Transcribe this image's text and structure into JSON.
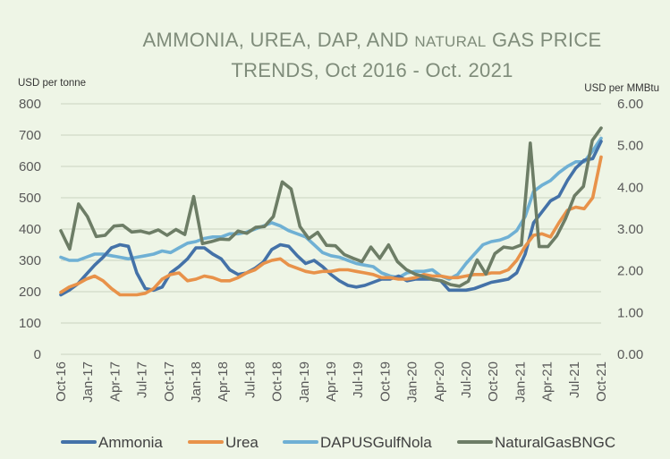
{
  "chart_data": {
    "type": "line",
    "title_part1": "AMMONIA, UREA, DAP, AND ",
    "title_part2": "NATURAL",
    "title_part3": " GAS PRICE",
    "title_line2": "TRENDS, Oct 2016 - Oct. 2021",
    "y_left_label": "USD per tonne",
    "y_right_label": "USD per MMBtu",
    "y_left_ticks": [
      "0",
      "100",
      "200",
      "300",
      "400",
      "500",
      "600",
      "700",
      "800"
    ],
    "y_right_ticks": [
      "0.00",
      "1.00",
      "2.00",
      "3.00",
      "4.00",
      "5.00",
      "6.00"
    ],
    "ylim_left": [
      0,
      800
    ],
    "ylim_right": [
      0,
      6
    ],
    "x_tick_labels": [
      "Oct-16",
      "Jan-17",
      "Apr-17",
      "Jul-17",
      "Oct-17",
      "Jan-18",
      "Apr-18",
      "Jul-18",
      "Oct-18",
      "Jan-19",
      "Apr-19",
      "Jul-19",
      "Oct-19",
      "Jan-20",
      "Apr-20",
      "Jul-20",
      "Oct-20",
      "Jan-21",
      "Apr-21",
      "Jul-21",
      "Oct-21"
    ],
    "legend_position": "bottom",
    "grid": true,
    "series": [
      {
        "name": "Ammonia",
        "axis": "left",
        "color": "#4472a8",
        "values": [
          190,
          205,
          225,
          255,
          285,
          310,
          340,
          350,
          345,
          260,
          210,
          205,
          215,
          260,
          280,
          305,
          340,
          340,
          320,
          305,
          270,
          255,
          260,
          275,
          295,
          335,
          350,
          345,
          315,
          290,
          300,
          280,
          255,
          235,
          220,
          215,
          220,
          230,
          240,
          240,
          250,
          235,
          240,
          240,
          240,
          235,
          205,
          205,
          205,
          210,
          220,
          230,
          235,
          240,
          260,
          320,
          420,
          455,
          490,
          505,
          555,
          595,
          620,
          625,
          680
        ]
      },
      {
        "name": "Urea",
        "axis": "left",
        "color": "#e8924a",
        "values": [
          198,
          215,
          225,
          240,
          250,
          235,
          210,
          190,
          190,
          190,
          195,
          210,
          240,
          255,
          260,
          235,
          240,
          250,
          245,
          235,
          235,
          245,
          260,
          270,
          290,
          300,
          305,
          285,
          275,
          265,
          260,
          265,
          265,
          270,
          270,
          265,
          260,
          255,
          245,
          245,
          240,
          240,
          245,
          255,
          250,
          250,
          245,
          245,
          250,
          255,
          255,
          260,
          260,
          270,
          300,
          345,
          380,
          385,
          375,
          420,
          460,
          470,
          465,
          500,
          630
        ]
      },
      {
        "name": "DAPUSGulfNola",
        "axis": "left",
        "color": "#6fb0d4",
        "values": [
          310,
          300,
          300,
          310,
          320,
          320,
          315,
          310,
          305,
          310,
          315,
          320,
          330,
          325,
          340,
          355,
          360,
          370,
          375,
          375,
          385,
          385,
          390,
          400,
          410,
          420,
          410,
          395,
          385,
          375,
          350,
          325,
          315,
          310,
          300,
          290,
          285,
          280,
          260,
          250,
          245,
          260,
          265,
          265,
          270,
          250,
          240,
          255,
          290,
          320,
          350,
          360,
          365,
          375,
          395,
          440,
          520,
          540,
          555,
          580,
          600,
          615,
          615,
          650,
          690
        ]
      },
      {
        "name": "NaturalGasBNGC",
        "axis": "right",
        "color": "#6d7d66",
        "values": [
          2.96,
          2.52,
          3.6,
          3.3,
          2.82,
          2.85,
          3.07,
          3.09,
          2.93,
          2.95,
          2.9,
          2.98,
          2.85,
          2.99,
          2.87,
          3.78,
          2.65,
          2.7,
          2.76,
          2.75,
          2.95,
          2.9,
          3.04,
          3.06,
          3.3,
          4.13,
          3.96,
          3.06,
          2.77,
          2.92,
          2.61,
          2.6,
          2.39,
          2.3,
          2.22,
          2.57,
          2.3,
          2.62,
          2.22,
          2.03,
          1.92,
          1.86,
          1.79,
          1.76,
          1.67,
          1.63,
          1.75,
          2.26,
          1.92,
          2.41,
          2.57,
          2.54,
          2.62,
          5.06,
          2.58,
          2.58,
          2.84,
          3.26,
          3.8,
          4.02,
          5.12,
          5.42
        ]
      }
    ]
  }
}
